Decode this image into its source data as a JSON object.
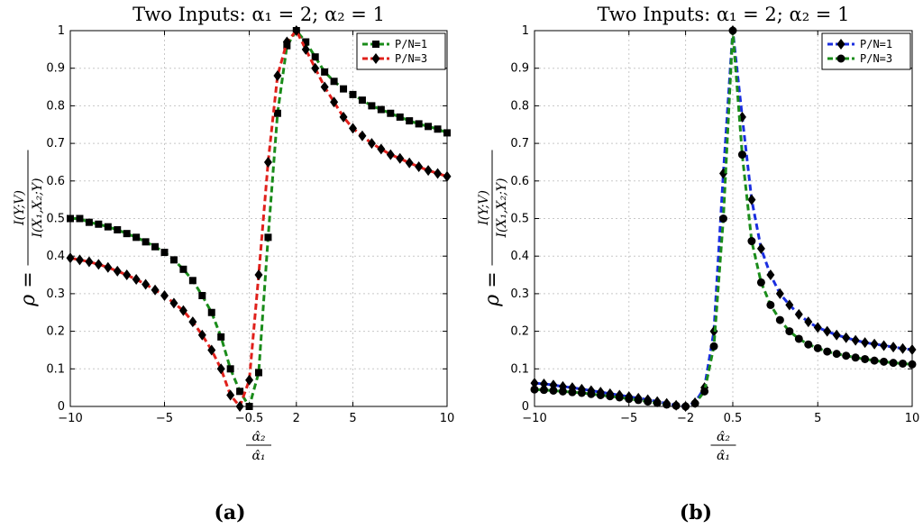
{
  "chart_data": [
    {
      "type": "line",
      "panel_label": "(a)",
      "title": "Two Inputs: α₁ = 2; α₂ = 1",
      "xlabel": "α̂₂ / α̂₁",
      "ylabel": "ρ = I(Y;V) / I(X₁,X₂;Y)",
      "xlim": [
        -10,
        10
      ],
      "ylim": [
        0,
        1
      ],
      "xticks": [
        -10,
        -5,
        -0.5,
        2,
        5,
        10
      ],
      "xtick_labels": [
        "−10",
        "−5",
        "−0.5",
        "2",
        "5",
        "10"
      ],
      "yticks": [
        0,
        0.1,
        0.2,
        0.3,
        0.4,
        0.5,
        0.6,
        0.7,
        0.8,
        0.9,
        1
      ],
      "ytick_labels": [
        "0",
        "0.1",
        "0.2",
        "0.3",
        "0.4",
        "0.5",
        "0.6",
        "0.7",
        "0.8",
        "0.9",
        "1"
      ],
      "grid": true,
      "legend_position": "top-right",
      "series": [
        {
          "name": "P/N=1",
          "line_color": "#1a8c1a",
          "marker": "square",
          "x": [
            -10,
            -9.5,
            -9,
            -8.5,
            -8,
            -7.5,
            -7,
            -6.5,
            -6,
            -5.5,
            -5,
            -4.5,
            -4,
            -3.5,
            -3,
            -2.5,
            -2,
            -1.5,
            -1,
            -0.5,
            0,
            0.5,
            1,
            1.5,
            2,
            2.5,
            3,
            3.5,
            4,
            4.5,
            5,
            5.5,
            6,
            6.5,
            7,
            7.5,
            8,
            8.5,
            9,
            9.5,
            10
          ],
          "y": [
            0.5,
            0.5,
            0.49,
            0.485,
            0.478,
            0.47,
            0.46,
            0.45,
            0.438,
            0.425,
            0.41,
            0.39,
            0.365,
            0.335,
            0.295,
            0.25,
            0.185,
            0.1,
            0.04,
            0,
            0.09,
            0.45,
            0.78,
            0.96,
            1,
            0.97,
            0.93,
            0.89,
            0.865,
            0.845,
            0.83,
            0.815,
            0.8,
            0.79,
            0.78,
            0.77,
            0.76,
            0.752,
            0.745,
            0.738,
            0.728
          ]
        },
        {
          "name": "P/N=3",
          "line_color": "#e0201b",
          "marker": "diamond",
          "x": [
            -10,
            -9.5,
            -9,
            -8.5,
            -8,
            -7.5,
            -7,
            -6.5,
            -6,
            -5.5,
            -5,
            -4.5,
            -4,
            -3.5,
            -3,
            -2.5,
            -2,
            -1.5,
            -1,
            -0.5,
            0,
            0.5,
            1,
            1.5,
            2,
            2.5,
            3,
            3.5,
            4,
            4.5,
            5,
            5.5,
            6,
            6.5,
            7,
            7.5,
            8,
            8.5,
            9,
            9.5,
            10
          ],
          "y": [
            0.395,
            0.39,
            0.385,
            0.378,
            0.37,
            0.36,
            0.35,
            0.338,
            0.325,
            0.31,
            0.295,
            0.275,
            0.255,
            0.225,
            0.19,
            0.15,
            0.1,
            0.03,
            0,
            0.07,
            0.35,
            0.65,
            0.88,
            0.97,
            1,
            0.95,
            0.9,
            0.85,
            0.81,
            0.77,
            0.74,
            0.72,
            0.7,
            0.685,
            0.67,
            0.66,
            0.648,
            0.638,
            0.628,
            0.62,
            0.612
          ]
        }
      ]
    },
    {
      "type": "line",
      "panel_label": "(b)",
      "title": "Two Inputs: α₁ = 2; α₂ = 1",
      "xlabel": "α̂₂ / α̂₁",
      "ylabel": "ρ = I(Y;V) / I(X₁,X₂;Y)",
      "xlim": [
        -10,
        10
      ],
      "ylim": [
        0,
        1
      ],
      "xticks": [
        -10,
        -5,
        -2,
        0.5,
        5,
        10
      ],
      "xtick_labels": [
        "−10",
        "−5",
        "−2",
        "0.5",
        "5",
        "10"
      ],
      "yticks": [
        0,
        0.1,
        0.2,
        0.3,
        0.4,
        0.5,
        0.6,
        0.7,
        0.8,
        0.9,
        1
      ],
      "ytick_labels": [
        "0",
        "0.1",
        "0.2",
        "0.3",
        "0.4",
        "0.5",
        "0.6",
        "0.7",
        "0.8",
        "0.9",
        "1"
      ],
      "grid": true,
      "legend_position": "top-right",
      "series": [
        {
          "name": "P/N=1",
          "line_color": "#1a2ee0",
          "marker": "diamond",
          "x": [
            -10,
            -9.5,
            -9,
            -8.5,
            -8,
            -7.5,
            -7,
            -6.5,
            -6,
            -5.5,
            -5,
            -4.5,
            -4,
            -3.5,
            -3,
            -2.5,
            -2,
            -1.5,
            -1,
            -0.5,
            0,
            0.5,
            1,
            1.5,
            2,
            2.5,
            3,
            3.5,
            4,
            4.5,
            5,
            5.5,
            6,
            6.5,
            7,
            7.5,
            8,
            8.5,
            9,
            9.5,
            10
          ],
          "y": [
            0.062,
            0.06,
            0.057,
            0.053,
            0.05,
            0.046,
            0.042,
            0.038,
            0.034,
            0.03,
            0.026,
            0.022,
            0.018,
            0.013,
            0.008,
            0.003,
            0,
            0.01,
            0.05,
            0.2,
            0.62,
            1,
            0.77,
            0.55,
            0.42,
            0.35,
            0.3,
            0.27,
            0.245,
            0.225,
            0.21,
            0.2,
            0.19,
            0.183,
            0.176,
            0.17,
            0.166,
            0.162,
            0.158,
            0.154,
            0.151
          ]
        },
        {
          "name": "P/N=3",
          "line_color": "#1a8c1a",
          "marker": "circle",
          "x": [
            -10,
            -9.5,
            -9,
            -8.5,
            -8,
            -7.5,
            -7,
            -6.5,
            -6,
            -5.5,
            -5,
            -4.5,
            -4,
            -3.5,
            -3,
            -2.5,
            -2,
            -1.5,
            -1,
            -0.5,
            0,
            0.5,
            1,
            1.5,
            2,
            2.5,
            3,
            3.5,
            4,
            4.5,
            5,
            5.5,
            6,
            6.5,
            7,
            7.5,
            8,
            8.5,
            9,
            9.5,
            10
          ],
          "y": [
            0.045,
            0.044,
            0.042,
            0.04,
            0.038,
            0.036,
            0.033,
            0.03,
            0.027,
            0.024,
            0.02,
            0.017,
            0.013,
            0.009,
            0.005,
            0.002,
            0,
            0.008,
            0.04,
            0.16,
            0.5,
            1,
            0.67,
            0.44,
            0.33,
            0.27,
            0.23,
            0.2,
            0.18,
            0.165,
            0.155,
            0.146,
            0.14,
            0.135,
            0.13,
            0.126,
            0.122,
            0.119,
            0.116,
            0.114,
            0.112
          ]
        }
      ]
    }
  ]
}
